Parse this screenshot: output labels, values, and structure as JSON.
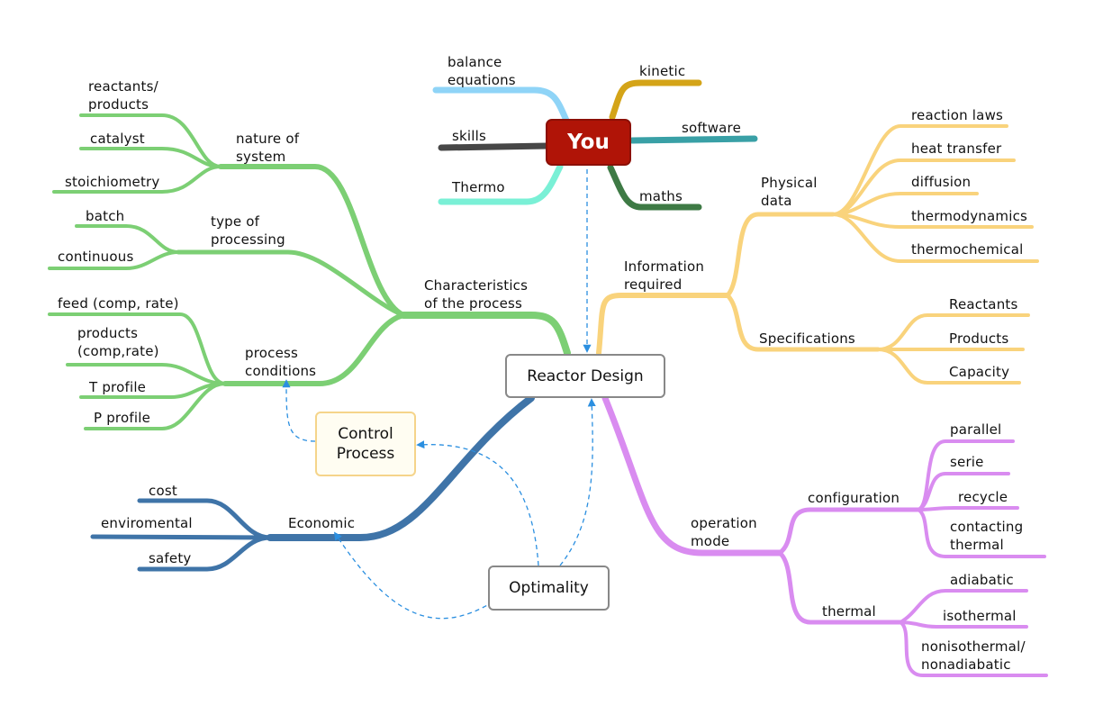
{
  "central": {
    "you": "You",
    "reactor": "Reactor Design",
    "control": "Control\nProcess",
    "optimality": "Optimality"
  },
  "you_branches": {
    "balance": "balance\nequations",
    "skills": "skills",
    "thermo": "Thermo",
    "kinetic": "kinetic",
    "software": "software",
    "maths": "maths"
  },
  "process": {
    "title": "Characteristics\nof the process",
    "nature": {
      "title": "nature of\nsystem",
      "items": [
        "reactants/\nproducts",
        "catalyst",
        "stoichiometry"
      ]
    },
    "type": {
      "title": "type of\nprocessing",
      "items": [
        "batch",
        "continuous"
      ]
    },
    "conditions": {
      "title": "process\nconditions",
      "items": [
        "feed (comp, rate)",
        "products\n(comp,rate)",
        "T profile",
        "P profile"
      ]
    }
  },
  "economic": {
    "title": "Economic",
    "items": [
      "cost",
      "enviromental",
      "safety"
    ]
  },
  "information": {
    "title": "Information\nrequired",
    "physical": {
      "title": "Physical\ndata",
      "items": [
        "reaction laws",
        "heat transfer",
        "diffusion",
        "thermodynamics",
        "thermochemical"
      ]
    },
    "specifications": {
      "title": "Specifications",
      "items": [
        "Reactants",
        "Products",
        "Capacity"
      ]
    }
  },
  "operation": {
    "title": "operation\nmode",
    "configuration": {
      "title": "configuration",
      "items": [
        "parallel",
        "serie",
        "recycle",
        "contacting\nthermal"
      ]
    },
    "thermal": {
      "title": "thermal",
      "items": [
        "adiabatic",
        "isothermal",
        "nonisothermal/\nnonadiabatic"
      ]
    }
  },
  "colors": {
    "green": "#7ccf74",
    "blue": "#3f74a8",
    "yellow": "#f9d37c",
    "purple": "#d98cf0",
    "you_red": "#b01407",
    "dashed": "#2b8fe0"
  }
}
